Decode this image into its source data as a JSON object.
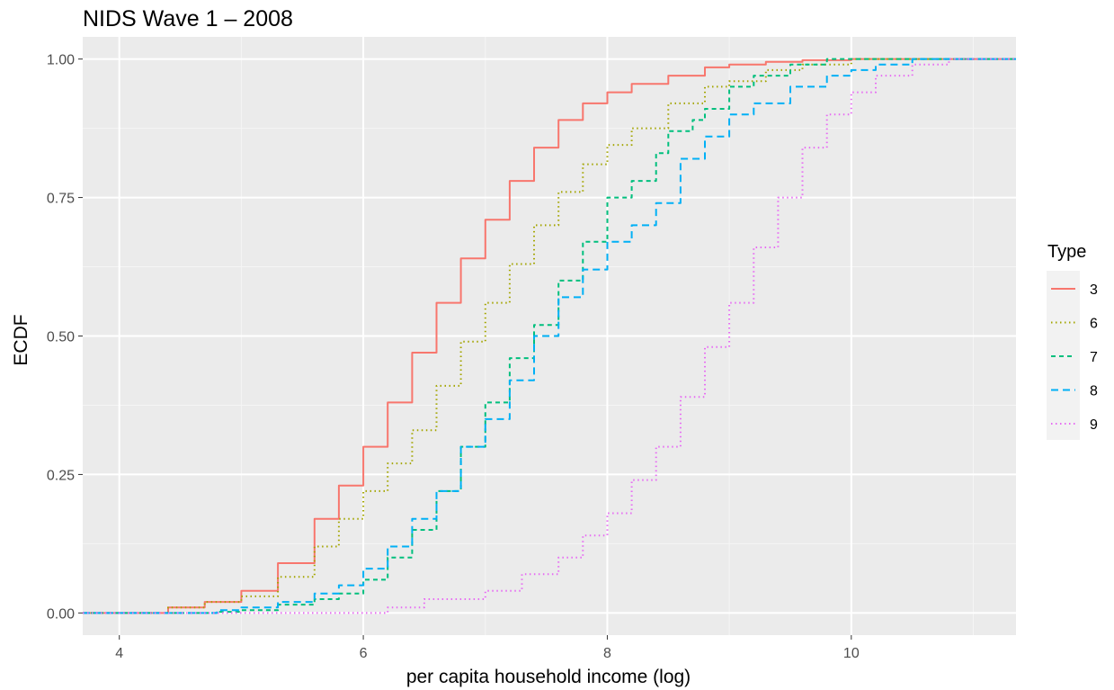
{
  "chart_data": {
    "type": "line",
    "title": "NIDS Wave 1 – 2008",
    "xlabel": "per capita household income (log)",
    "ylabel": "ECDF",
    "xlim": [
      3.7,
      11.35
    ],
    "ylim": [
      -0.04,
      1.04
    ],
    "x_ticks": [
      4,
      6,
      8,
      10
    ],
    "x_tick_labels": [
      "4",
      "6",
      "8",
      "10"
    ],
    "y_ticks": [
      0,
      0.25,
      0.5,
      0.75,
      1
    ],
    "y_tick_labels": [
      "0.00",
      "0.25",
      "0.50",
      "0.75",
      "1.00"
    ],
    "grid": true,
    "panel_background": "#ebebeb",
    "legend": {
      "title": "Type",
      "position": "right"
    },
    "series": [
      {
        "name": "3",
        "color": "#F8766D",
        "linetype": "solid",
        "x": [
          3.7,
          4.0,
          4.4,
          4.7,
          5.0,
          5.3,
          5.6,
          5.8,
          6.0,
          6.2,
          6.4,
          6.6,
          6.8,
          7.0,
          7.2,
          7.4,
          7.6,
          7.8,
          8.0,
          8.2,
          8.5,
          8.8,
          9.0,
          9.3,
          9.6,
          10.0,
          10.5,
          11.35
        ],
        "y": [
          0.0,
          0.0,
          0.01,
          0.02,
          0.04,
          0.09,
          0.17,
          0.23,
          0.3,
          0.38,
          0.47,
          0.56,
          0.64,
          0.71,
          0.78,
          0.84,
          0.89,
          0.92,
          0.94,
          0.955,
          0.97,
          0.985,
          0.99,
          0.995,
          0.998,
          1.0,
          1.0,
          1.0
        ]
      },
      {
        "name": "6",
        "color": "#A3A500",
        "linetype": "dotted",
        "x": [
          3.7,
          4.0,
          4.4,
          4.7,
          5.0,
          5.3,
          5.6,
          5.8,
          6.0,
          6.2,
          6.4,
          6.6,
          6.8,
          7.0,
          7.2,
          7.4,
          7.6,
          7.8,
          8.0,
          8.2,
          8.5,
          8.8,
          9.0,
          9.3,
          9.6,
          10.0,
          10.5,
          11.35
        ],
        "y": [
          0.0,
          0.0,
          0.01,
          0.02,
          0.03,
          0.065,
          0.12,
          0.17,
          0.22,
          0.27,
          0.33,
          0.41,
          0.49,
          0.56,
          0.63,
          0.7,
          0.76,
          0.81,
          0.845,
          0.875,
          0.92,
          0.95,
          0.96,
          0.98,
          0.99,
          1.0,
          1.0,
          1.0
        ]
      },
      {
        "name": "7",
        "color": "#00BF7D",
        "linetype": "dashed",
        "x": [
          3.7,
          4.0,
          4.5,
          4.8,
          5.0,
          5.3,
          5.6,
          5.8,
          6.0,
          6.2,
          6.4,
          6.6,
          6.8,
          7.0,
          7.2,
          7.4,
          7.6,
          7.8,
          8.0,
          8.2,
          8.4,
          8.5,
          8.7,
          8.8,
          9.0,
          9.2,
          9.5,
          9.8,
          10.0,
          10.5,
          11.35
        ],
        "y": [
          0.0,
          0.0,
          0.0,
          0.002,
          0.005,
          0.015,
          0.025,
          0.035,
          0.06,
          0.1,
          0.15,
          0.22,
          0.3,
          0.38,
          0.46,
          0.52,
          0.6,
          0.67,
          0.75,
          0.78,
          0.83,
          0.87,
          0.89,
          0.91,
          0.95,
          0.97,
          0.99,
          1.0,
          1.0,
          1.0,
          1.0
        ]
      },
      {
        "name": "8",
        "color": "#00B0F6",
        "linetype": "longdash",
        "x": [
          3.7,
          4.0,
          4.5,
          4.8,
          5.0,
          5.3,
          5.6,
          5.8,
          6.0,
          6.2,
          6.4,
          6.6,
          6.8,
          7.0,
          7.2,
          7.4,
          7.6,
          7.8,
          8.0,
          8.2,
          8.4,
          8.6,
          8.8,
          9.0,
          9.2,
          9.5,
          9.8,
          10.0,
          10.2,
          10.5,
          11.35
        ],
        "y": [
          0.0,
          0.0,
          0.0,
          0.005,
          0.01,
          0.02,
          0.035,
          0.05,
          0.08,
          0.12,
          0.17,
          0.22,
          0.3,
          0.35,
          0.42,
          0.5,
          0.57,
          0.62,
          0.67,
          0.7,
          0.74,
          0.82,
          0.86,
          0.9,
          0.92,
          0.95,
          0.97,
          0.98,
          0.99,
          1.0,
          1.0
        ]
      },
      {
        "name": "9",
        "color": "#E76BF3",
        "linetype": "dotted",
        "x": [
          3.7,
          4.0,
          5.0,
          5.5,
          6.0,
          6.2,
          6.5,
          7.0,
          7.3,
          7.6,
          7.8,
          8.0,
          8.2,
          8.4,
          8.6,
          8.8,
          9.0,
          9.2,
          9.4,
          9.6,
          9.8,
          10.0,
          10.2,
          10.5,
          10.8,
          11.35
        ],
        "y": [
          0.0,
          0.0,
          0.0,
          0.0,
          0.0,
          0.01,
          0.025,
          0.04,
          0.07,
          0.1,
          0.14,
          0.18,
          0.24,
          0.3,
          0.39,
          0.48,
          0.56,
          0.66,
          0.75,
          0.84,
          0.9,
          0.94,
          0.97,
          0.99,
          1.0,
          1.0
        ]
      }
    ]
  }
}
